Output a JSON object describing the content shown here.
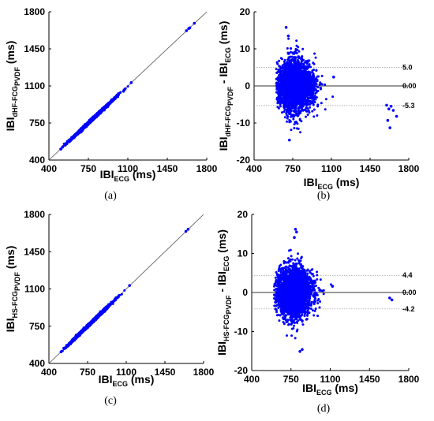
{
  "chart_data": [
    {
      "type": "scatter",
      "panel_label": "(a)",
      "xlabel": {
        "main": "IBI",
        "sub": "ECG",
        "suffix": " (ms)"
      },
      "ylabel": {
        "main": "IBI",
        "sub": "dHF-FCG",
        "subsub": "PVDF",
        "suffix": " (ms)"
      },
      "xlim": [
        400,
        1800
      ],
      "ylim": [
        400,
        1800
      ],
      "xticks": [
        400,
        750,
        1100,
        1450,
        1800
      ],
      "yticks": [
        400,
        750,
        1100,
        1450,
        1800
      ],
      "identity_line": true,
      "cluster": {
        "x_mean": 780,
        "x_sd": 95,
        "x_min": 505,
        "x_max": 1130,
        "y_sd": 6
      },
      "points": [
        [
          1130,
          1131
        ],
        [
          1620,
          1622
        ],
        [
          1640,
          1642
        ],
        [
          1650,
          1649
        ],
        [
          1690,
          1692
        ],
        [
          505,
          504
        ],
        [
          520,
          521
        ]
      ],
      "marker_color": "#0000ff"
    },
    {
      "type": "scatter",
      "panel_label": "(b)",
      "xlabel": {
        "main": "IBI",
        "sub": "ECG",
        "suffix": " (ms)"
      },
      "ylabel": {
        "main": "IBI",
        "sub": "dHF-FCG",
        "subsub": "PVDF",
        "mid": " - IBI",
        "sub2": "ECG",
        "suffix": " (ms)"
      },
      "xlim": [
        400,
        1800
      ],
      "ylim": [
        -20,
        20
      ],
      "xticks": [
        400,
        750,
        1100,
        1450,
        1800
      ],
      "yticks": [
        -20,
        -10,
        0,
        10,
        20
      ],
      "reference_lines": [
        {
          "y": 5.0,
          "label": "5.0",
          "style": "dotted"
        },
        {
          "y": 0.0,
          "label": "0.00",
          "style": "solid"
        },
        {
          "y": -5.3,
          "label": "-5.3",
          "style": "dotted"
        }
      ],
      "cluster": {
        "x_mean": 770,
        "x_sd": 85,
        "x_min": 600,
        "x_max": 1130,
        "y_sd": 2.9
      },
      "points": [
        [
          690,
          15.8
        ],
        [
          710,
          13.5
        ],
        [
          720,
          -14.6
        ],
        [
          1120,
          2.4
        ],
        [
          1600,
          -5.2
        ],
        [
          1620,
          -6.2
        ],
        [
          1640,
          -5.5
        ],
        [
          1660,
          -6.6
        ],
        [
          1690,
          -8.2
        ],
        [
          1610,
          -9.3
        ],
        [
          1630,
          -11.3
        ]
      ],
      "marker_color": "#0000ff"
    },
    {
      "type": "scatter",
      "panel_label": "(c)",
      "xlabel": {
        "main": "IBI",
        "sub": "ECG",
        "suffix": " (ms)"
      },
      "ylabel": {
        "main": "IBI",
        "sub": "HS-FCG",
        "subsub": "PVDF",
        "suffix": " (ms)"
      },
      "xlim": [
        400,
        1800
      ],
      "ylim": [
        400,
        1800
      ],
      "xticks": [
        400,
        750,
        1100,
        1450,
        1800
      ],
      "yticks": [
        400,
        750,
        1100,
        1450,
        1800
      ],
      "identity_line": true,
      "cluster": {
        "x_mean": 780,
        "x_sd": 95,
        "x_min": 510,
        "x_max": 1130,
        "y_sd": 6
      },
      "points": [
        [
          1130,
          1132
        ],
        [
          1640,
          1641
        ],
        [
          1660,
          1661
        ],
        [
          510,
          509
        ]
      ],
      "marker_color": "#0000ff"
    },
    {
      "type": "scatter",
      "panel_label": "(d)",
      "xlabel": {
        "main": "IBI",
        "sub": "ECG",
        "suffix": " (ms)"
      },
      "ylabel": {
        "main": "IBI",
        "sub": "HS-FCG",
        "subsub": "PVDF",
        "mid": " - IBI",
        "sub2": "ECG",
        "suffix": " (ms)"
      },
      "xlim": [
        400,
        1800
      ],
      "ylim": [
        -20,
        20
      ],
      "xticks": [
        400,
        750,
        1100,
        1450,
        1800
      ],
      "yticks": [
        -20,
        -10,
        0,
        10,
        20
      ],
      "reference_lines": [
        {
          "y": 4.4,
          "label": "4.4",
          "style": "dotted"
        },
        {
          "y": 0.0,
          "label": "0.00",
          "style": "solid"
        },
        {
          "y": -4.2,
          "label": "-4.2",
          "style": "dotted"
        }
      ],
      "cluster": {
        "x_mean": 770,
        "x_sd": 85,
        "x_min": 600,
        "x_max": 1130,
        "y_sd": 2.6
      },
      "points": [
        [
          790,
          16.2
        ],
        [
          800,
          15.5
        ],
        [
          780,
          14.1
        ],
        [
          830,
          -15.1
        ],
        [
          850,
          -14.6
        ],
        [
          1120,
          1.6
        ],
        [
          1630,
          -1.4
        ],
        [
          1650,
          -1.9
        ]
      ],
      "marker_color": "#0000ff"
    }
  ]
}
